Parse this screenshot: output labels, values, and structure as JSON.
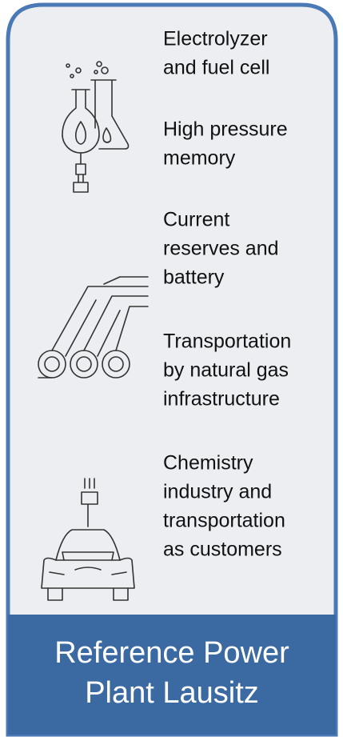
{
  "items": [
    {
      "lines": [
        "Electrolyzer",
        "and fuel cell"
      ]
    },
    {
      "lines": [
        "High pressure",
        "memory"
      ]
    },
    {
      "lines": [
        "Current",
        "reserves and",
        "battery"
      ]
    },
    {
      "lines": [
        "Transportation",
        "by natural gas",
        "infrastructure"
      ]
    },
    {
      "lines": [
        "Chemistry",
        "industry and",
        "transportation",
        "as customers"
      ]
    }
  ],
  "footer": {
    "lines": [
      "Reference Power",
      "Plant Lausitz"
    ]
  }
}
